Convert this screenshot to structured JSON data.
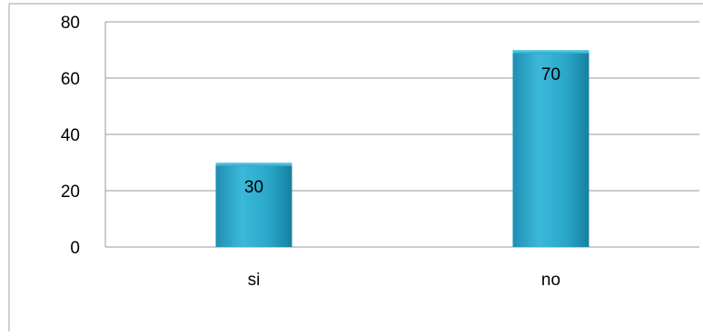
{
  "chart_data": {
    "type": "bar",
    "categories": [
      "si",
      "no"
    ],
    "values": [
      30,
      70
    ],
    "data_labels": [
      "30",
      "70"
    ],
    "ylim": [
      0,
      80
    ],
    "yticks": [
      0,
      20,
      40,
      60,
      80
    ],
    "ytick_labels": [
      "0",
      "20",
      "40",
      "60",
      "80"
    ],
    "title": "",
    "xlabel": "",
    "ylabel": "",
    "grid": true,
    "legend": "none",
    "bar_color": "#2aa6c8",
    "bar_color_dark": "#1680a0",
    "gridline_color": "#9a9a9a"
  }
}
